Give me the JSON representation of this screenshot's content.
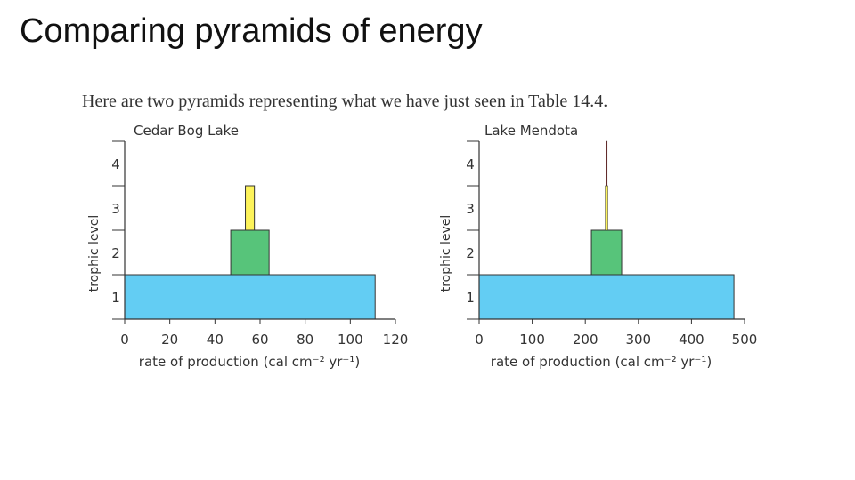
{
  "slide": {
    "title": "Comparing pyramids of energy",
    "caption": "Here are two pyramids representing what we have just seen in Table 14.4."
  },
  "colors": {
    "level1": "#63cdf3",
    "level2": "#57c47a",
    "level3": "#fdf35b",
    "level4": "#8b1a1a",
    "outline": "#333333"
  },
  "chart_data": [
    {
      "type": "bar",
      "orientation": "horizontal-centered",
      "title": "Cedar Bog Lake",
      "ylabel": "trophic level",
      "xlabel": "rate of production (cal cm⁻² yr⁻¹)",
      "categories": [
        "1",
        "2",
        "3",
        "4"
      ],
      "values": [
        111,
        17,
        4,
        0
      ],
      "xlim": [
        0,
        120
      ],
      "xticks": [
        "0",
        "20",
        "40",
        "60",
        "80",
        "100",
        "120"
      ],
      "yticks": [
        "1",
        "2",
        "3",
        "4"
      ]
    },
    {
      "type": "bar",
      "orientation": "horizontal-centered",
      "title": "Lake Mendota",
      "ylabel": "trophic level",
      "xlabel": "rate of production (cal cm⁻² yr⁻¹)",
      "categories": [
        "1",
        "2",
        "3",
        "4"
      ],
      "values": [
        480,
        57,
        5,
        1
      ],
      "xlim": [
        0,
        500
      ],
      "xticks": [
        "0",
        "100",
        "200",
        "300",
        "400",
        "500"
      ],
      "yticks": [
        "1",
        "2",
        "3",
        "4"
      ]
    }
  ]
}
